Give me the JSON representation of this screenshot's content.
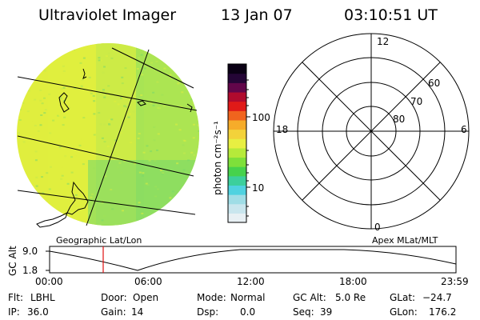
{
  "header": {
    "instrument": "Ultraviolet Imager",
    "date": "13 Jan 07",
    "time": "03:10:51 UT"
  },
  "colorbar": {
    "unit_label": "photon cm⁻²s⁻¹",
    "tick_labels": [
      "100",
      "10"
    ],
    "colors": [
      "#e8f0f4",
      "#c9e6ee",
      "#9fdde6",
      "#4fd2e0",
      "#3ccf9c",
      "#46d24c",
      "#7ee03a",
      "#b6ea3a",
      "#e8ef42",
      "#f3d23a",
      "#f6ac2a",
      "#f0641e",
      "#e01a18",
      "#b00b2e",
      "#62064a",
      "#240536",
      "#0a0014"
    ]
  },
  "image_panel": {
    "label": "Geographic Lat/Lon",
    "fill_colors": [
      "#e0ee3e",
      "#c7ea4a",
      "#9fe257",
      "#7ad86a"
    ]
  },
  "polar_panel": {
    "label": "Apex MLat/MLT",
    "mlt_labels": [
      "12",
      "18",
      "6",
      "0"
    ],
    "mlat_labels": [
      "60",
      "70",
      "80"
    ]
  },
  "altitude_strip": {
    "axis_label": "GC Alt",
    "y_ticks": [
      "9.0",
      "1.8"
    ],
    "time_ticks": [
      "00:00",
      "06:00",
      "12:00",
      "18:00",
      "23:59"
    ],
    "marker_time": "03:10",
    "marker_color": "#e01010"
  },
  "status": {
    "row1": [
      {
        "key": "Flt:",
        "value": "LBHL"
      },
      {
        "key": "Door:",
        "value": "Open"
      },
      {
        "key": "Mode:",
        "value": "Normal"
      },
      {
        "key": "GC Alt:",
        "value": "5.0 Re"
      },
      {
        "key": "GLat:",
        "value": "−24.7"
      }
    ],
    "row2": [
      {
        "key": "IP:",
        "value": "36.0"
      },
      {
        "key": "Gain:",
        "value": "14"
      },
      {
        "key": "Dsp:",
        "value": "0.0"
      },
      {
        "key": "Seq:",
        "value": "39"
      },
      {
        "key": "GLon:",
        "value": "176.2"
      }
    ]
  }
}
